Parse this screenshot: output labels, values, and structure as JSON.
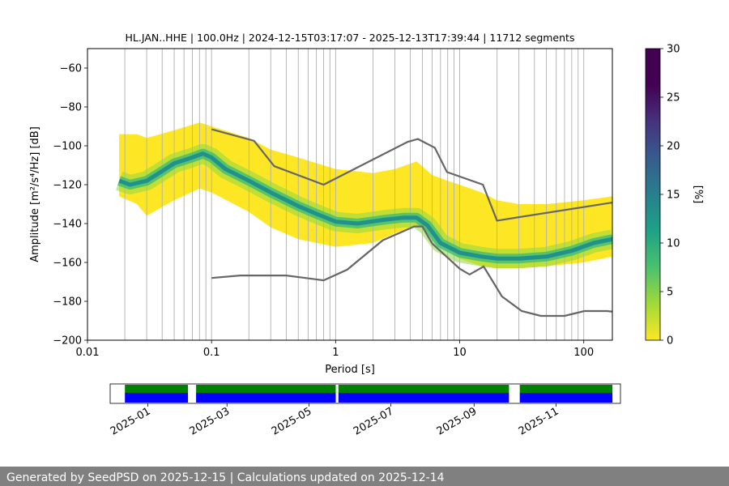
{
  "chart_data": [
    {
      "type": "heatmap",
      "title": "HL.JAN..HHE | 100.0Hz | 2024-12-15T03:17:07 - 2025-12-13T17:39:44 | 11712 segments",
      "xlabel": "Period [s]",
      "ylabel": "Amplitude [m²/s⁴/Hz] [dB]",
      "xscale": "log",
      "xlim": [
        0.01,
        170
      ],
      "ylim": [
        -200,
        -50
      ],
      "x_ticks": [
        0.01,
        0.1,
        1,
        10,
        100
      ],
      "x_tick_labels": [
        "0.01",
        "0.1",
        "1",
        "10",
        "100"
      ],
      "y_ticks": [
        -60,
        -80,
        -100,
        -120,
        -140,
        -160,
        -180,
        -200
      ],
      "y_tick_labels": [
        "−60",
        "−80",
        "−100",
        "−120",
        "−140",
        "−160",
        "−180",
        "−200"
      ],
      "grid": "vertical log grid",
      "colormap": "viridis",
      "colorbar": {
        "label": "[%]",
        "range": [
          0,
          30
        ],
        "ticks": [
          0,
          5,
          10,
          15,
          20,
          25,
          30
        ],
        "tick_labels": [
          "0",
          "5",
          "10",
          "15",
          "20",
          "25",
          "30"
        ]
      },
      "psd_mode": {
        "period": [
          0.018,
          0.022,
          0.03,
          0.04,
          0.05,
          0.07,
          0.085,
          0.1,
          0.13,
          0.2,
          0.3,
          0.5,
          0.7,
          1.0,
          1.5,
          2.5,
          3.5,
          4.5,
          5.5,
          7,
          10,
          15,
          20,
          30,
          50,
          80,
          120,
          170
        ],
        "amplitude_db": [
          -118,
          -120,
          -118,
          -113,
          -109,
          -106,
          -104,
          -106,
          -112,
          -118,
          -124,
          -131,
          -135,
          -139,
          -140,
          -138,
          -137,
          -137,
          -141,
          -150,
          -155,
          -157,
          -158,
          -158,
          -157,
          -154,
          -150,
          -148
        ]
      },
      "probability_band": {
        "period": [
          0.018,
          0.025,
          0.03,
          0.05,
          0.08,
          0.1,
          0.2,
          0.3,
          0.5,
          1,
          2,
          3,
          4.5,
          6,
          8,
          10,
          15,
          20,
          30,
          50,
          100,
          170
        ],
        "upper_db": [
          -94,
          -94,
          -96,
          -92,
          -88,
          -90,
          -96,
          -102,
          -106,
          -112,
          -114,
          -112,
          -108,
          -115,
          -118,
          -120,
          -124,
          -128,
          -130,
          -130,
          -128,
          -126
        ],
        "lower_db": [
          -126,
          -130,
          -136,
          -128,
          -122,
          -124,
          -134,
          -142,
          -148,
          -152,
          -150,
          -145,
          -141,
          -145,
          -152,
          -158,
          -162,
          -163,
          -163,
          -162,
          -160,
          -157
        ]
      },
      "reference_curves": [
        {
          "period": [
            0.1,
            0.22,
            0.32,
            0.8,
            3.8,
            4.6,
            6.3,
            7.9,
            15.4,
            20,
            354.8
          ],
          "amplitude_db": [
            -91.5,
            -97.4,
            -110.5,
            -120,
            -98,
            -96.5,
            -101,
            -113.5,
            -120,
            -138.5,
            -126
          ]
        },
        {
          "period": [
            0.1,
            0.17,
            0.4,
            0.8,
            1.24,
            2.4,
            4.3,
            5,
            6,
            10,
            12,
            15.6,
            21.9,
            31.6,
            45,
            70,
            101,
            154,
            328.6,
            600,
            10000,
            100000
          ],
          "amplitude_db": [
            -168,
            -166.7,
            -166.7,
            -169.2,
            -163.7,
            -148.6,
            -141.5,
            -141.5,
            -150.2,
            -163.2,
            -166.2,
            -162.1,
            -177.5,
            -185,
            -187.5,
            -187.5,
            -185,
            -185,
            -187.5,
            -187.5,
            -184.4,
            -151.9
          ]
        }
      ]
    },
    {
      "type": "timeline",
      "x_tick_labels": [
        "2025-01",
        "2025-03",
        "2025-05",
        "2025-07",
        "2025-09",
        "2025-11"
      ],
      "series": [
        {
          "name": "",
          "color": "#008000",
          "spans": [
            [
              "2024-12-15",
              "2025-01-31"
            ],
            [
              "2025-02-06",
              "2025-05-21"
            ],
            [
              "2025-05-23",
              "2025-09-27"
            ],
            [
              "2025-10-05",
              "2025-12-13"
            ]
          ]
        },
        {
          "name": "",
          "color": "#0000ff",
          "spans": [
            [
              "2024-12-15",
              "2025-01-31"
            ],
            [
              "2025-02-06",
              "2025-05-21"
            ],
            [
              "2025-05-23",
              "2025-09-27"
            ],
            [
              "2025-10-05",
              "2025-12-13"
            ]
          ]
        }
      ]
    }
  ],
  "footer": "Generated by SeedPSD on 2025-12-15 | Calculations updated on 2025-12-14"
}
